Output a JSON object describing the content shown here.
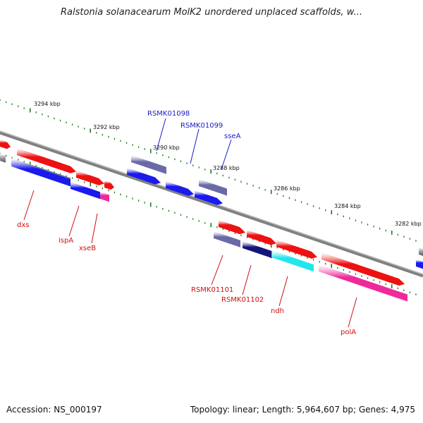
{
  "title": "Ralstonia solanacearum MolK2 unordered unplaced scaffolds, w...",
  "footer": {
    "accession": "Accession: NS_000197",
    "summary": "Topology: linear; Length: 5,964,607 bp; Genes: 4,975"
  },
  "colors": {
    "backbone": "#808080",
    "tick": "#1f7a1f",
    "red": "#ee1111",
    "blue": "#1a1aee",
    "slate": "#6a6aa8",
    "navy": "#14147a",
    "cyan": "#22e6ee",
    "pink": "#ee2a9a",
    "label_blue": "#1a1acc",
    "label_red": "#cc1111"
  },
  "scale_labels": [
    "3294 kbp",
    "3292 kbp",
    "3290 kbp",
    "3288 kbp",
    "3286 kbp",
    "3284 kbp",
    "3282 kbp"
  ],
  "gene_labels": {
    "RSMK01098": "RSMK01098",
    "RSMK01099": "RSMK01099",
    "sseA": "sseA",
    "dxs": "dxs",
    "ispA": "ispA",
    "xseB": "xseB",
    "RSMK01101": "RSMK01101",
    "RSMK01102": "RSMK01102",
    "ndh": "ndh",
    "polA": "polA"
  }
}
